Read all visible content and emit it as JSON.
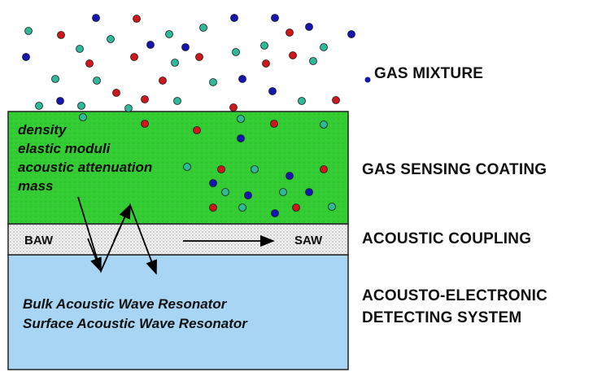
{
  "layers": [
    {
      "label": "GAS MIXTURE"
    },
    {
      "label": "GAS SENSING COATING"
    },
    {
      "label": "ACOUSTIC COUPLING"
    },
    {
      "label": "ACOUSTO-ELECTRONIC",
      "label_line2": "DETECTING SYSTEM"
    }
  ],
  "coating_properties": [
    "density",
    "elastic moduli",
    "acoustic attenuation",
    "mass"
  ],
  "wave_types": {
    "bulk": "BAW",
    "surface": "SAW"
  },
  "resonators": [
    "Bulk Acoustic Wave Resonator",
    "Surface Acoustic Wave Resonator"
  ],
  "colors": {
    "coating": "#33cc33",
    "coupling": "#e8e8e8",
    "detector": "#a7d5f3",
    "molecule_red": "#d0161b",
    "molecule_blue": "#1515b4",
    "molecule_teal": "#2fb89a"
  }
}
